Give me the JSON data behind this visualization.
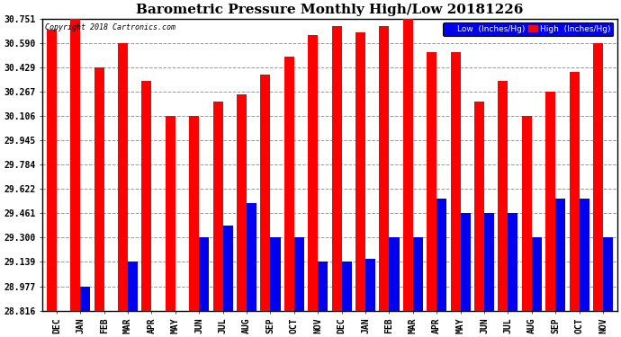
{
  "title": "Barometric Pressure Monthly High/Low 20181226",
  "copyright": "Copyright 2018 Cartronics.com",
  "months": [
    "DEC",
    "JAN",
    "FEB",
    "MAR",
    "APR",
    "MAY",
    "JUN",
    "JUL",
    "AUG",
    "SEP",
    "OCT",
    "NOV",
    "DEC",
    "JAN",
    "FEB",
    "MAR",
    "APR",
    "MAY",
    "JUN",
    "JUL",
    "AUG",
    "SEP",
    "OCT",
    "NOV"
  ],
  "high_values": [
    30.68,
    30.751,
    30.43,
    30.59,
    30.34,
    30.106,
    30.106,
    30.2,
    30.25,
    30.38,
    30.5,
    30.64,
    30.7,
    30.66,
    30.7,
    30.751,
    30.53,
    30.53,
    30.2,
    30.34,
    30.106,
    30.267,
    30.4,
    30.59
  ],
  "low_values": [
    28.816,
    28.977,
    28.816,
    29.139,
    28.816,
    28.816,
    29.3,
    29.38,
    29.53,
    29.3,
    29.3,
    29.139,
    29.139,
    29.16,
    29.3,
    29.3,
    29.56,
    29.461,
    29.461,
    29.461,
    29.3,
    29.56,
    29.56,
    29.3
  ],
  "ymin": 28.816,
  "ymax": 30.751,
  "yticks": [
    30.751,
    30.59,
    30.429,
    30.267,
    30.106,
    29.945,
    29.784,
    29.622,
    29.461,
    29.3,
    29.139,
    28.977,
    28.816
  ],
  "high_color": "#FF0000",
  "low_color": "#0000EE",
  "bg_color": "#FFFFFF",
  "grid_color": "#999999",
  "title_fontsize": 11,
  "tick_fontsize": 7,
  "legend_high_label": "High  (Inches/Hg)",
  "legend_low_label": "Low  (Inches/Hg)"
}
